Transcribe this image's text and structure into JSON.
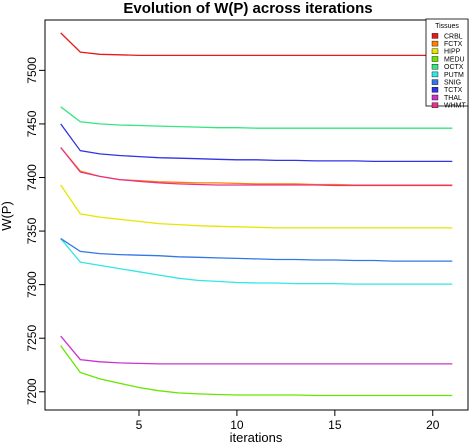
{
  "chart_data": {
    "type": "line",
    "title": "Evolution of W(P) across iterations",
    "xlabel": "iterations",
    "ylabel": "W(P)",
    "xlim": [
      0.2,
      21.8
    ],
    "ylim": [
      7183,
      7547
    ],
    "xticks": [
      "5",
      "10",
      "15",
      "20"
    ],
    "yticks": [
      "7200",
      "7250",
      "7300",
      "7350",
      "7400",
      "7450",
      "7500"
    ],
    "grid": false,
    "legend_title": "Tissues",
    "legend_position": "top-right",
    "x": [
      1,
      2,
      3,
      4,
      5,
      6,
      7,
      8,
      9,
      10,
      11,
      12,
      13,
      14,
      15,
      16,
      17,
      18,
      19,
      20,
      21
    ],
    "series": [
      {
        "name": "CRBL",
        "color": "#e41a1c",
        "values": [
          7535,
          7517,
          7515,
          7514.5,
          7514,
          7514,
          7514,
          7514,
          7514,
          7514,
          7514,
          7514,
          7514,
          7514,
          7514,
          7514,
          7514,
          7514,
          7514,
          7514,
          7514
        ]
      },
      {
        "name": "FCTX",
        "color": "#ff7f00",
        "values": [
          7428,
          7406,
          7401,
          7398,
          7397,
          7396,
          7395.5,
          7395,
          7395,
          7394.5,
          7394,
          7394,
          7394,
          7393.5,
          7393.5,
          7393,
          7393,
          7393,
          7393,
          7393,
          7393
        ]
      },
      {
        "name": "HIPP",
        "color": "#e6e600",
        "values": [
          7393,
          7366,
          7363,
          7361,
          7359,
          7357,
          7356,
          7355,
          7354.5,
          7354,
          7353.5,
          7353,
          7353,
          7353,
          7353,
          7353,
          7353,
          7353,
          7353,
          7353,
          7353
        ]
      },
      {
        "name": "MEDU",
        "color": "#66e600",
        "values": [
          7243,
          7218,
          7212,
          7208,
          7204,
          7201,
          7199,
          7198,
          7197.5,
          7197,
          7197,
          7197,
          7197,
          7196.5,
          7196.5,
          7196.5,
          7196.5,
          7196.5,
          7196.5,
          7196.5,
          7196.5
        ]
      },
      {
        "name": "OCTX",
        "color": "#33e680",
        "values": [
          7466,
          7452,
          7450,
          7449,
          7448.5,
          7448,
          7447.5,
          7447,
          7446.5,
          7446.5,
          7446,
          7446,
          7446,
          7446,
          7446,
          7446,
          7446,
          7446,
          7446,
          7446,
          7446
        ]
      },
      {
        "name": "PUTM",
        "color": "#33e6e6",
        "values": [
          7343,
          7321,
          7318,
          7315,
          7312,
          7309,
          7306,
          7304,
          7303,
          7302,
          7301.5,
          7301.5,
          7301,
          7301,
          7301,
          7300.5,
          7300.5,
          7300.5,
          7300.5,
          7300.5,
          7300.5
        ]
      },
      {
        "name": "SNIG",
        "color": "#3377e6",
        "values": [
          7343,
          7331,
          7329,
          7328,
          7327.5,
          7327,
          7326,
          7325.5,
          7325,
          7324.5,
          7324,
          7323.5,
          7323.5,
          7323,
          7323,
          7322.5,
          7322.5,
          7322,
          7322,
          7322,
          7322
        ]
      },
      {
        "name": "TCTX",
        "color": "#3333e6",
        "values": [
          7450,
          7425,
          7422,
          7420.5,
          7419.5,
          7418.5,
          7418,
          7417.5,
          7417,
          7416.5,
          7416.5,
          7416,
          7416,
          7415.5,
          7415.5,
          7415.5,
          7415,
          7415,
          7415,
          7415,
          7415
        ]
      },
      {
        "name": "THAL",
        "color": "#cc33cc",
        "values": [
          7252,
          7230,
          7228,
          7227,
          7226.5,
          7226,
          7226,
          7226,
          7226,
          7226,
          7226,
          7226,
          7226,
          7226,
          7226,
          7226,
          7226,
          7226,
          7226,
          7226,
          7226
        ]
      },
      {
        "name": "WHMT",
        "color": "#e6338c",
        "values": [
          7428,
          7405,
          7401,
          7398,
          7396.5,
          7395,
          7394,
          7393.5,
          7393,
          7393,
          7393,
          7393,
          7393,
          7393,
          7392.5,
          7392.5,
          7392.5,
          7392.5,
          7392.5,
          7392.5,
          7392.5
        ]
      }
    ]
  }
}
